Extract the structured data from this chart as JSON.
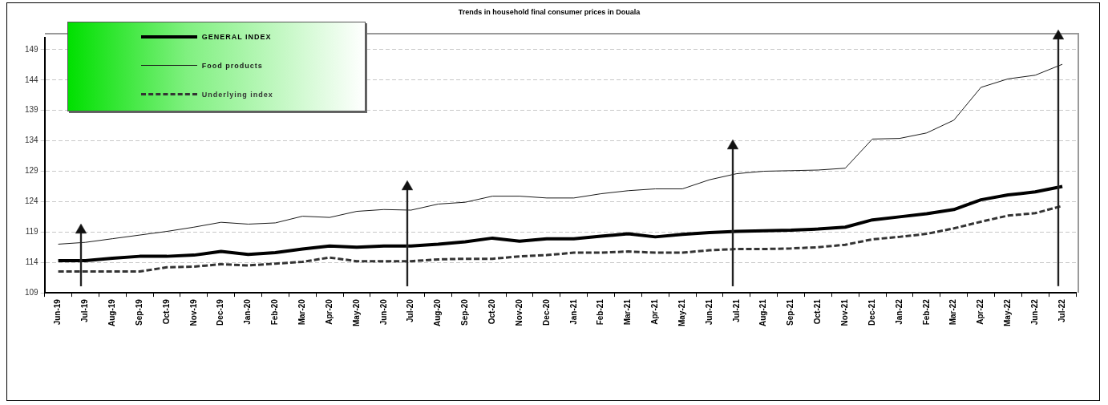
{
  "chart_data": {
    "type": "line",
    "title": "Trends in household final consumer prices in Douala",
    "categories": [
      "Jun-19",
      "Jul-19",
      "Aug-19",
      "Sep-19",
      "Oct-19",
      "Nov-19",
      "Dec-19",
      "Jan-20",
      "Feb-20",
      "Mar-20",
      "Apr-20",
      "May-20",
      "Jun-20",
      "Jul-20",
      "Aug-20",
      "Sep-20",
      "Oct-20",
      "Nov-20",
      "Dec-20",
      "Jan-21",
      "Feb-21",
      "Mar-21",
      "Apr-21",
      "May-21",
      "Jun-21",
      "Jul-21",
      "Aug-21",
      "Sep-21",
      "Oct-21",
      "Nov-21",
      "Dec-21",
      "Jan-22",
      "Feb-22",
      "Mar-22",
      "Apr-22",
      "May-22",
      "Jun-22",
      "Jul-22"
    ],
    "series": [
      {
        "name": "GENERAL INDEX",
        "color": "#000000",
        "line_style": "solid",
        "values": [
          114.3,
          114.3,
          114.7,
          115.0,
          115.0,
          115.2,
          115.8,
          115.3,
          115.6,
          116.2,
          116.7,
          116.5,
          116.7,
          116.7,
          117.0,
          117.4,
          118.0,
          117.5,
          117.9,
          117.9,
          118.3,
          118.7,
          118.2,
          118.6,
          118.9,
          119.1,
          119.2,
          119.3,
          119.5,
          119.8,
          121.0,
          121.5,
          122.0,
          122.7,
          124.3,
          125.1,
          125.6,
          126.5
        ]
      },
      {
        "name": "Food products",
        "color": "#1a1a1a",
        "line_style": "solid",
        "values": [
          117.0,
          117.3,
          117.9,
          118.5,
          119.1,
          119.8,
          120.6,
          120.3,
          120.5,
          121.6,
          121.4,
          122.4,
          122.7,
          122.6,
          123.6,
          123.9,
          124.9,
          124.9,
          124.6,
          124.6,
          125.3,
          125.8,
          126.1,
          126.1,
          127.6,
          128.6,
          129.0,
          129.1,
          129.2,
          129.5,
          134.3,
          134.4,
          135.3,
          137.4,
          142.8,
          144.2,
          144.8,
          146.6
        ]
      },
      {
        "name": "Underlying index",
        "color": "#333333",
        "line_style": "dashed",
        "values": [
          112.5,
          112.5,
          112.5,
          112.5,
          113.2,
          113.3,
          113.7,
          113.5,
          113.8,
          114.1,
          114.8,
          114.2,
          114.2,
          114.2,
          114.5,
          114.6,
          114.6,
          115.0,
          115.2,
          115.6,
          115.6,
          115.8,
          115.6,
          115.6,
          116.0,
          116.2,
          116.2,
          116.3,
          116.5,
          116.9,
          117.8,
          118.2,
          118.7,
          119.6,
          120.7,
          121.7,
          122.1,
          123.3
        ]
      }
    ],
    "ylim": [
      109,
      151
    ],
    "yticks": [
      109,
      114,
      119,
      124,
      129,
      134,
      139,
      144,
      149
    ],
    "grid": "y",
    "legend": "top left",
    "marker": "none"
  }
}
